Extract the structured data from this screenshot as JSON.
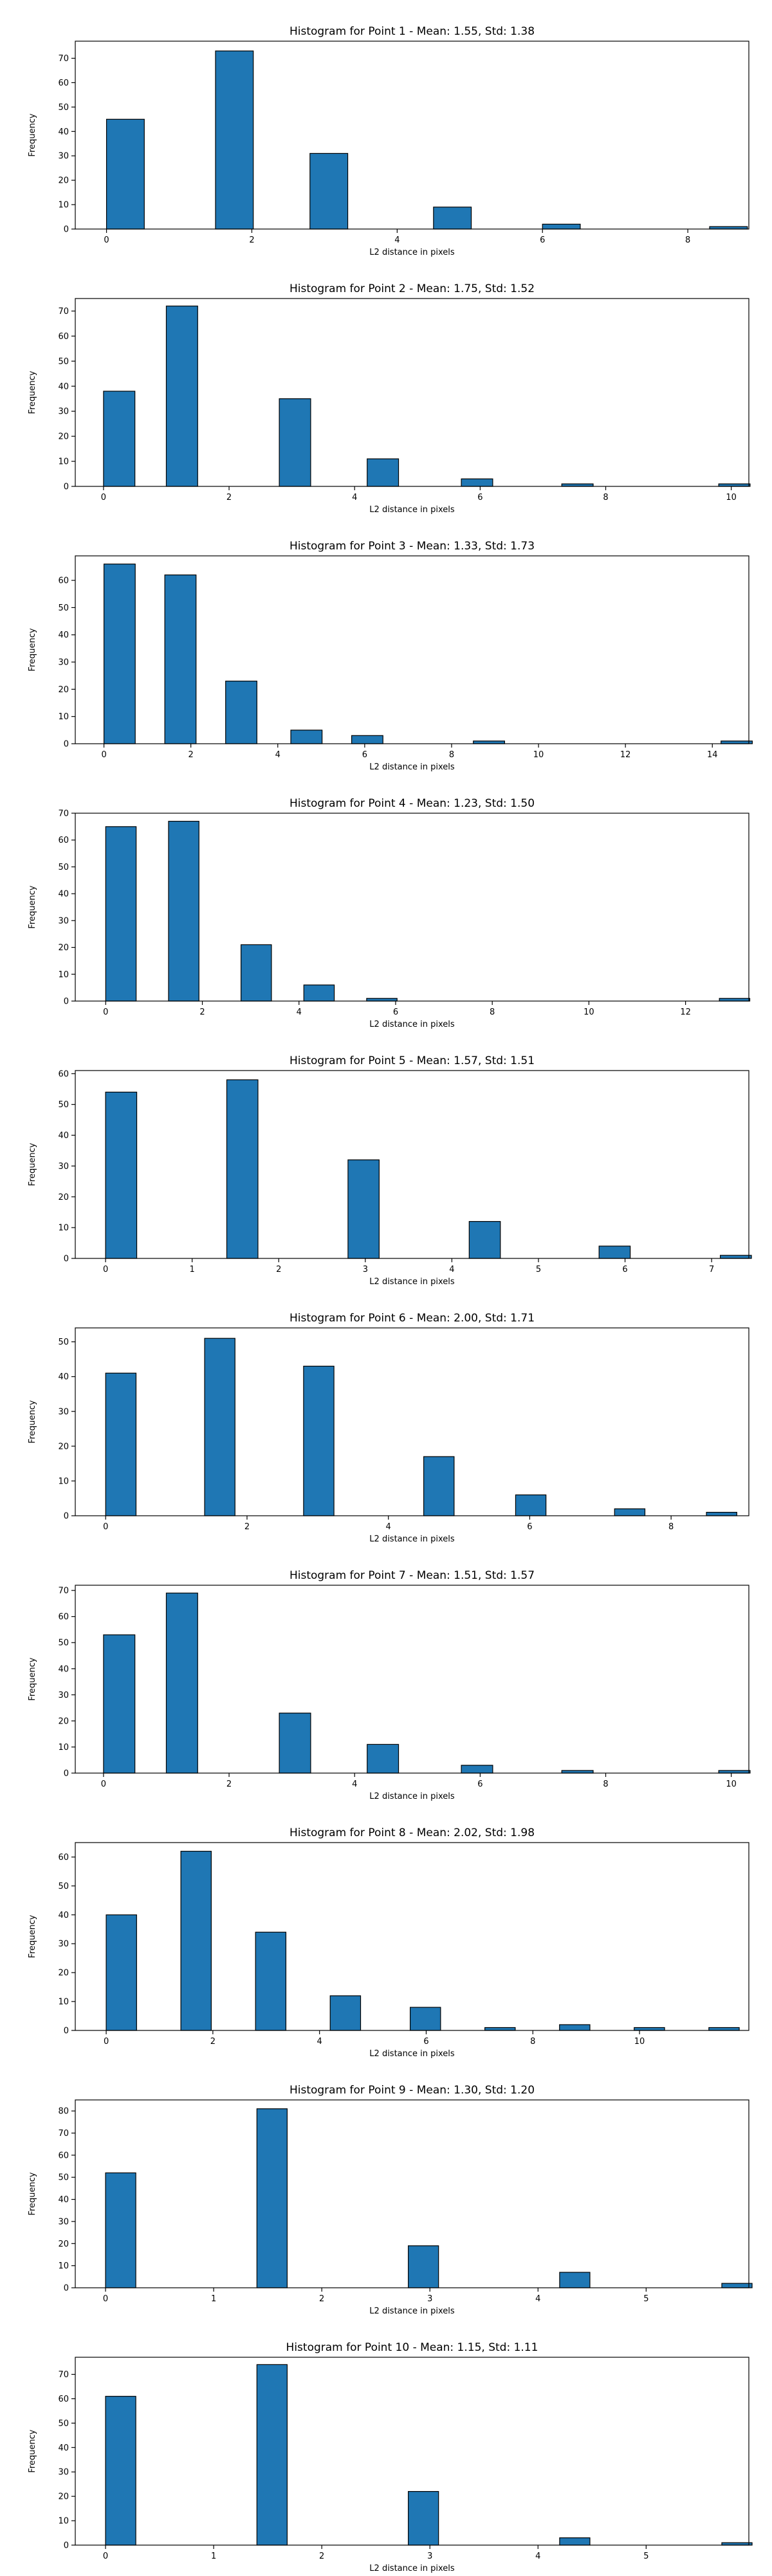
{
  "figure": {
    "bar_color": "#1f77b4",
    "edge_color": "#000000"
  },
  "chart_data": [
    {
      "type": "bar",
      "title": "Histogram for Point 1 - Mean: 1.55, Std: 1.38",
      "xlabel": "L2 distance in pixels",
      "ylabel": "Frequency",
      "xlim": [
        -0.43,
        8.84
      ],
      "ylim": [
        0,
        77
      ],
      "bin_width": 0.52,
      "xticks": [
        0,
        2,
        4,
        6,
        8
      ],
      "yticks": [
        0,
        10,
        20,
        30,
        40,
        50,
        60,
        70
      ],
      "bins": [
        {
          "x": 0,
          "value": 45
        },
        {
          "x": 1.5,
          "value": 73
        },
        {
          "x": 2.8,
          "value": 31
        },
        {
          "x": 4.5,
          "value": 9
        },
        {
          "x": 6.0,
          "value": 2
        },
        {
          "x": 8.3,
          "value": 1
        }
      ]
    },
    {
      "type": "bar",
      "title": "Histogram for Point 2 - Mean: 1.75, Std: 1.52",
      "xlabel": "L2 distance in pixels",
      "ylabel": "Frequency",
      "xlim": [
        -0.45,
        10.28
      ],
      "ylim": [
        0,
        75
      ],
      "bin_width": 0.5,
      "xticks": [
        0,
        2,
        4,
        6,
        8,
        10
      ],
      "yticks": [
        0,
        10,
        20,
        30,
        40,
        50,
        60,
        70
      ],
      "bins": [
        {
          "x": 0,
          "value": 38
        },
        {
          "x": 1.0,
          "value": 72
        },
        {
          "x": 2.8,
          "value": 35
        },
        {
          "x": 4.2,
          "value": 11
        },
        {
          "x": 5.7,
          "value": 3
        },
        {
          "x": 7.3,
          "value": 1
        },
        {
          "x": 9.8,
          "value": 1
        }
      ]
    },
    {
      "type": "bar",
      "title": "Histogram for Point 3 - Mean: 1.33, Std: 1.73",
      "xlabel": "L2 distance in pixels",
      "ylabel": "Frequency",
      "xlim": [
        -0.66,
        14.84
      ],
      "ylim": [
        0,
        69
      ],
      "bin_width": 0.72,
      "xticks": [
        0,
        2,
        4,
        6,
        8,
        10,
        12,
        14
      ],
      "yticks": [
        0,
        10,
        20,
        30,
        40,
        50,
        60
      ],
      "bins": [
        {
          "x": 0,
          "value": 66
        },
        {
          "x": 1.4,
          "value": 62
        },
        {
          "x": 2.8,
          "value": 23
        },
        {
          "x": 4.3,
          "value": 5
        },
        {
          "x": 5.7,
          "value": 3
        },
        {
          "x": 8.5,
          "value": 1
        },
        {
          "x": 14.2,
          "value": 1
        }
      ]
    },
    {
      "type": "bar",
      "title": "Histogram for Point 4 - Mean: 1.23, Std: 1.50",
      "xlabel": "L2 distance in pixels",
      "ylabel": "Frequency",
      "xlim": [
        -0.63,
        13.31
      ],
      "ylim": [
        0,
        70
      ],
      "bin_width": 0.63,
      "xticks": [
        0,
        2,
        4,
        6,
        8,
        10,
        12
      ],
      "yticks": [
        0,
        10,
        20,
        30,
        40,
        50,
        60,
        70
      ],
      "bins": [
        {
          "x": 0,
          "value": 65
        },
        {
          "x": 1.3,
          "value": 67
        },
        {
          "x": 2.8,
          "value": 21
        },
        {
          "x": 4.1,
          "value": 6
        },
        {
          "x": 5.4,
          "value": 1
        },
        {
          "x": 12.7,
          "value": 1
        }
      ]
    },
    {
      "type": "bar",
      "title": "Histogram for Point 5 - Mean: 1.57, Std: 1.51",
      "xlabel": "L2 distance in pixels",
      "ylabel": "Frequency",
      "xlim": [
        -0.35,
        7.43
      ],
      "ylim": [
        0,
        61
      ],
      "bin_width": 0.36,
      "xticks": [
        0,
        1,
        2,
        3,
        4,
        5,
        6,
        7
      ],
      "yticks": [
        0,
        10,
        20,
        30,
        40,
        50,
        60
      ],
      "bins": [
        {
          "x": 0,
          "value": 54
        },
        {
          "x": 1.4,
          "value": 58
        },
        {
          "x": 2.8,
          "value": 32
        },
        {
          "x": 4.2,
          "value": 12
        },
        {
          "x": 5.7,
          "value": 4
        },
        {
          "x": 7.1,
          "value": 1
        }
      ]
    },
    {
      "type": "bar",
      "title": "Histogram for Point 6 - Mean: 2.00, Std: 1.71",
      "xlabel": "L2 distance in pixels",
      "ylabel": "Frequency",
      "xlim": [
        -0.43,
        9.1
      ],
      "ylim": [
        0,
        54
      ],
      "bin_width": 0.43,
      "xticks": [
        0,
        2,
        4,
        6,
        8
      ],
      "yticks": [
        0,
        10,
        20,
        30,
        40,
        50
      ],
      "bins": [
        {
          "x": 0,
          "value": 41
        },
        {
          "x": 1.4,
          "value": 51
        },
        {
          "x": 2.8,
          "value": 43
        },
        {
          "x": 4.5,
          "value": 17
        },
        {
          "x": 5.8,
          "value": 6
        },
        {
          "x": 7.2,
          "value": 2
        },
        {
          "x": 8.5,
          "value": 1
        }
      ]
    },
    {
      "type": "bar",
      "title": "Histogram for Point 7 - Mean: 1.51, Std: 1.57",
      "xlabel": "L2 distance in pixels",
      "ylabel": "Frequency",
      "xlim": [
        -0.45,
        10.28
      ],
      "ylim": [
        0,
        72
      ],
      "bin_width": 0.5,
      "xticks": [
        0,
        2,
        4,
        6,
        8,
        10
      ],
      "yticks": [
        0,
        10,
        20,
        30,
        40,
        50,
        60,
        70
      ],
      "bins": [
        {
          "x": 0,
          "value": 53
        },
        {
          "x": 1.0,
          "value": 69
        },
        {
          "x": 2.8,
          "value": 23
        },
        {
          "x": 4.2,
          "value": 11
        },
        {
          "x": 5.7,
          "value": 3
        },
        {
          "x": 7.3,
          "value": 1
        },
        {
          "x": 9.8,
          "value": 1
        }
      ]
    },
    {
      "type": "bar",
      "title": "Histogram for Point 8 - Mean: 2.02, Std: 1.98",
      "xlabel": "L2 distance in pixels",
      "ylabel": "Frequency",
      "xlim": [
        -0.58,
        12.05
      ],
      "ylim": [
        0,
        65
      ],
      "bin_width": 0.57,
      "xticks": [
        0,
        2,
        4,
        6,
        8,
        10
      ],
      "yticks": [
        0,
        10,
        20,
        30,
        40,
        50,
        60
      ],
      "bins": [
        {
          "x": 0,
          "value": 40
        },
        {
          "x": 1.4,
          "value": 62
        },
        {
          "x": 2.8,
          "value": 34
        },
        {
          "x": 4.2,
          "value": 12
        },
        {
          "x": 5.7,
          "value": 8
        },
        {
          "x": 7.1,
          "value": 1
        },
        {
          "x": 8.5,
          "value": 2
        },
        {
          "x": 9.9,
          "value": 1
        },
        {
          "x": 11.3,
          "value": 1
        }
      ]
    },
    {
      "type": "bar",
      "title": "Histogram for Point 9 - Mean: 1.30, Std: 1.20",
      "xlabel": "L2 distance in pixels",
      "ylabel": "Frequency",
      "xlim": [
        -0.28,
        5.95
      ],
      "ylim": [
        0,
        85
      ],
      "bin_width": 0.28,
      "xticks": [
        0,
        1,
        2,
        3,
        4,
        5
      ],
      "yticks": [
        0,
        10,
        20,
        30,
        40,
        50,
        60,
        70,
        80
      ],
      "bins": [
        {
          "x": 0,
          "value": 52
        },
        {
          "x": 1.4,
          "value": 81
        },
        {
          "x": 2.8,
          "value": 19
        },
        {
          "x": 4.2,
          "value": 7
        },
        {
          "x": 5.7,
          "value": 2
        }
      ]
    },
    {
      "type": "bar",
      "title": "Histogram for Point 10 - Mean: 1.15, Std: 1.11",
      "xlabel": "L2 distance in pixels",
      "ylabel": "Frequency",
      "xlim": [
        -0.28,
        5.95
      ],
      "ylim": [
        0,
        77
      ],
      "bin_width": 0.28,
      "xticks": [
        0,
        1,
        2,
        3,
        4,
        5
      ],
      "yticks": [
        0,
        10,
        20,
        30,
        40,
        50,
        60,
        70
      ],
      "bins": [
        {
          "x": 0,
          "value": 61
        },
        {
          "x": 1.4,
          "value": 74
        },
        {
          "x": 2.8,
          "value": 22
        },
        {
          "x": 4.2,
          "value": 3
        },
        {
          "x": 5.7,
          "value": 1
        }
      ]
    }
  ]
}
